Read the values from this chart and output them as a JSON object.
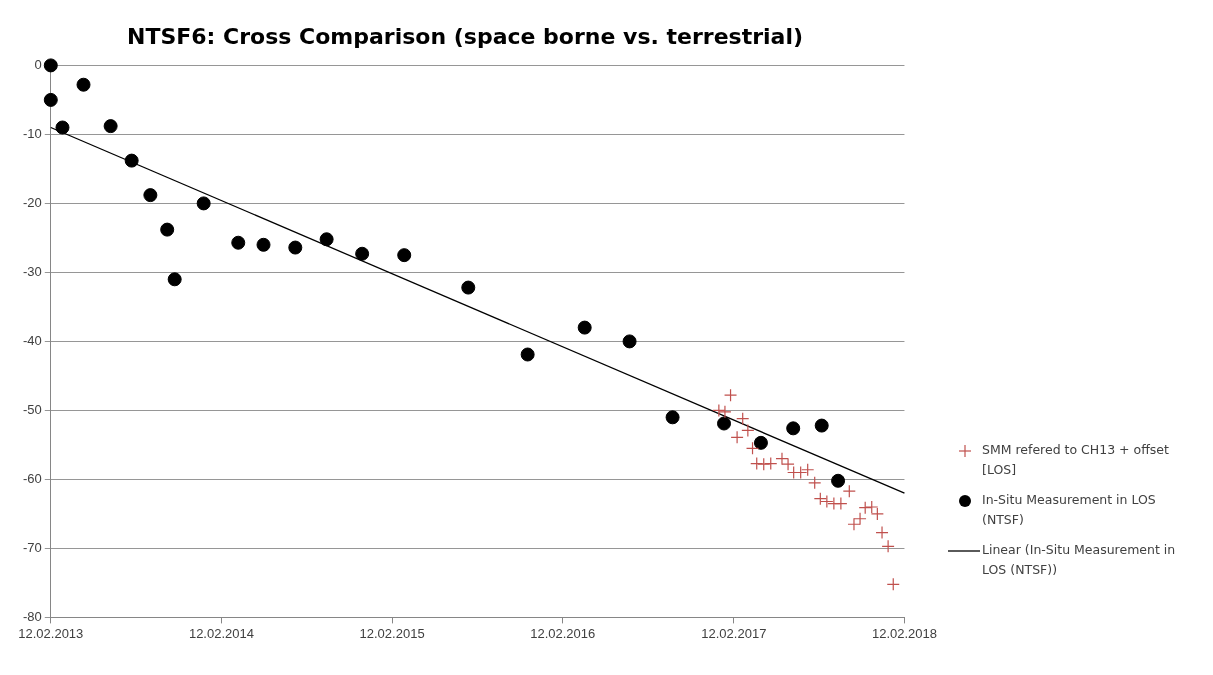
{
  "chart_data": {
    "type": "scatter",
    "title": "NTSF6: Cross Comparison (space borne vs. terrestrial)",
    "xlim": [
      "2013-02-12",
      "2018-02-12"
    ],
    "xticks": [
      {
        "value": "2013-02-12",
        "label": "12.02.2013"
      },
      {
        "value": "2014-02-12",
        "label": "12.02.2014"
      },
      {
        "value": "2015-02-12",
        "label": "12.02.2015"
      },
      {
        "value": "2016-02-12",
        "label": "12.02.2016"
      },
      {
        "value": "2017-02-12",
        "label": "12.02.2017"
      },
      {
        "value": "2018-02-12",
        "label": "12.02.2018"
      }
    ],
    "ylim": [
      -80,
      0
    ],
    "yticks": [
      -80,
      -70,
      -60,
      -50,
      -40,
      -30,
      -20,
      -10,
      0
    ],
    "grid": "y",
    "legend": "right",
    "series": [
      {
        "name": "SMM refered to CH13 + offset [LOS]",
        "marker": "cross",
        "color": "#c0504d",
        "x": [
          "2017-01-11",
          "2017-01-24",
          "2017-02-05",
          "2017-02-19",
          "2017-03-03",
          "2017-03-14",
          "2017-03-24",
          "2017-04-02",
          "2017-04-17",
          "2017-05-02",
          "2017-05-26",
          "2017-06-08",
          "2017-06-20",
          "2017-07-05",
          "2017-07-20",
          "2017-08-04",
          "2017-08-16",
          "2017-08-30",
          "2017-09-14",
          "2017-09-29",
          "2017-10-17",
          "2017-10-27",
          "2017-11-09",
          "2017-11-20",
          "2017-12-04",
          "2017-12-16",
          "2017-12-26",
          "2018-01-08",
          "2018-01-19"
        ],
        "values": [
          -50,
          -50.2,
          -47.8,
          -53.9,
          -51.2,
          -52.9,
          -55.5,
          -57.7,
          -57.8,
          -57.7,
          -57,
          -57.8,
          -59,
          -59,
          -58.6,
          -60.5,
          -62.8,
          -63.2,
          -63.5,
          -63.5,
          -61.7,
          -66.5,
          -65.7,
          -64.1,
          -64,
          -65,
          -67.7,
          -69.7,
          -75.2
        ]
      },
      {
        "name": "In-Situ Measurement in LOS (NTSF)",
        "marker": "circle",
        "color": "#000000",
        "x": [
          "2013-02-12",
          "2013-02-12",
          "2013-03-09",
          "2013-04-23",
          "2013-06-20",
          "2013-08-04",
          "2013-09-13",
          "2013-10-19",
          "2013-11-04",
          "2014-01-05",
          "2014-03-20",
          "2014-05-13",
          "2014-07-20",
          "2014-09-25",
          "2014-12-10",
          "2015-03-10",
          "2015-07-25",
          "2015-11-29",
          "2016-03-30",
          "2016-07-04",
          "2016-10-04",
          "2017-01-22",
          "2017-04-11",
          "2017-06-19",
          "2017-08-19",
          "2017-09-23"
        ],
        "values": [
          0,
          -5,
          -9,
          -2.8,
          -8.8,
          -13.8,
          -18.8,
          -23.8,
          -31,
          -20,
          -25.7,
          -26,
          -26.4,
          -25.2,
          -27.3,
          -27.5,
          -32.2,
          -41.9,
          -38,
          -40,
          -51,
          -51.9,
          -54.7,
          -52.6,
          -52.2,
          -60.2
        ]
      },
      {
        "name": "Linear (In-Situ Measurement in LOS (NTSF))",
        "type": "line",
        "marker": "none",
        "line_style": "solid",
        "color": "#000000",
        "x": [
          "2013-02-12",
          "2018-02-12"
        ],
        "values": [
          -9,
          -62
        ]
      }
    ]
  }
}
